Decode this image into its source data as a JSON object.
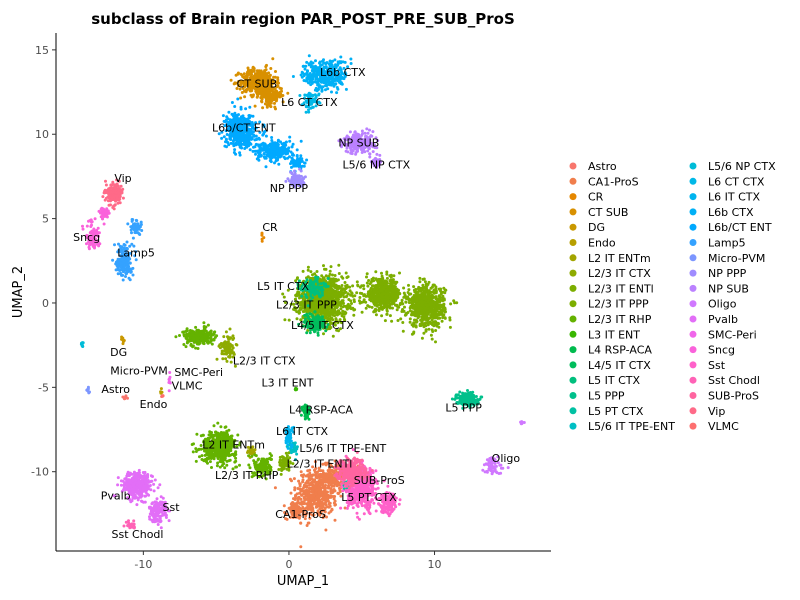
{
  "chart_data": {
    "type": "scatter",
    "title": "subclass of Brain region PAR_POST_PRE_SUB_ProS",
    "xlabel": "UMAP_1",
    "ylabel": "UMAP_2",
    "xlim": [
      -16.0,
      18.0
    ],
    "ylim": [
      -14.7,
      16.0
    ],
    "xticks": [
      -10,
      0,
      10
    ],
    "yticks": [
      -10,
      -5,
      0,
      5,
      10,
      15
    ],
    "legend_position": "right",
    "legend_columns": 2,
    "series": [
      {
        "name": "Astro",
        "color": "#F8766D",
        "clusters": [
          [
            -11.3,
            -5.6,
            0.15,
            0.12,
            8
          ]
        ]
      },
      {
        "name": "CA1-ProS",
        "color": "#F07E4C",
        "clusters": [
          [
            1.9,
            -11.3,
            1.4,
            1.5,
            500
          ],
          [
            3.4,
            -10.2,
            0.9,
            0.8,
            160
          ],
          [
            0.4,
            -12.3,
            0.6,
            0.5,
            100
          ]
        ]
      },
      {
        "name": "CR",
        "color": "#E58700",
        "clusters": [
          [
            -1.8,
            3.9,
            0.1,
            0.2,
            6
          ]
        ]
      },
      {
        "name": "CT SUB",
        "color": "#D89000",
        "clusters": [
          [
            -2.1,
            13.1,
            1.2,
            0.8,
            450
          ],
          [
            -1.2,
            12.3,
            0.7,
            0.6,
            160
          ]
        ]
      },
      {
        "name": "DG",
        "color": "#C99800",
        "clusters": [
          [
            -11.4,
            -2.2,
            0.15,
            0.2,
            10
          ]
        ]
      },
      {
        "name": "Endo",
        "color": "#B79F00",
        "clusters": [
          [
            -8.8,
            -5.2,
            0.15,
            0.15,
            6
          ]
        ]
      },
      {
        "name": "L2 IT ENTm",
        "color": "#A3A500",
        "clusters": [
          [
            -2.6,
            -8.8,
            0.3,
            0.3,
            30
          ]
        ]
      },
      {
        "name": "L2/3 IT CTX",
        "color": "#8EAB00",
        "clusters": [
          [
            -4.2,
            -2.6,
            0.5,
            0.8,
            90
          ]
        ]
      },
      {
        "name": "L2/3 IT ENTl",
        "color": "#7CAE00",
        "clusters": [
          [
            -0.3,
            -9.5,
            0.4,
            0.5,
            80
          ]
        ]
      },
      {
        "name": "L2/3 IT PPP",
        "color": "#7CAE00",
        "clusters": [
          [
            2.3,
            0.2,
            1.7,
            1.4,
            1200
          ],
          [
            6.5,
            0.5,
            1.2,
            0.9,
            500
          ],
          [
            9.4,
            -0.2,
            1.3,
            1.2,
            700
          ]
        ]
      },
      {
        "name": "L2/3 IT RHP",
        "color": "#64B200",
        "clusters": [
          [
            -4.8,
            -8.5,
            1.2,
            0.9,
            500
          ],
          [
            -6.2,
            -2.0,
            1.0,
            0.5,
            250
          ],
          [
            -1.8,
            -9.7,
            0.6,
            0.6,
            150
          ]
        ]
      },
      {
        "name": "L3 IT ENT",
        "color": "#39B600",
        "clusters": [
          [
            0.5,
            -5.1,
            0.12,
            0.12,
            10
          ]
        ]
      },
      {
        "name": "L4 RSP-ACA",
        "color": "#00BB4E",
        "clusters": [
          [
            1.2,
            -6.5,
            0.25,
            0.6,
            40
          ]
        ]
      },
      {
        "name": "L4/5 IT CTX",
        "color": "#00BD5C",
        "clusters": [
          [
            1.8,
            -1.2,
            0.8,
            0.6,
            120
          ]
        ]
      },
      {
        "name": "L5 IT CTX",
        "color": "#00BF7D",
        "clusters": [
          [
            1.6,
            0.9,
            0.8,
            0.6,
            120
          ]
        ]
      },
      {
        "name": "L5 PPP",
        "color": "#00C08B",
        "clusters": [
          [
            12.2,
            -5.7,
            0.7,
            0.35,
            250
          ]
        ]
      },
      {
        "name": "L5 PT CTX",
        "color": "#00C1A3",
        "clusters": [
          [
            4.0,
            -10.8,
            0.35,
            0.35,
            40
          ]
        ]
      },
      {
        "name": "L5/6 IT TPE-ENT",
        "color": "#00BFC4",
        "clusters": [
          [
            0.3,
            -8.6,
            0.3,
            0.4,
            40
          ]
        ]
      },
      {
        "name": "L5/6 NP CTX",
        "color": "#00BCD8",
        "clusters": [
          [
            -14.2,
            -2.5,
            0.1,
            0.2,
            10
          ]
        ]
      },
      {
        "name": "L6 CT CTX",
        "color": "#00B8E7",
        "clusters": [
          [
            1.5,
            12.0,
            0.6,
            0.5,
            60
          ]
        ]
      },
      {
        "name": "L6 IT CTX",
        "color": "#00B4EF",
        "clusters": [
          [
            0.0,
            -7.9,
            0.3,
            0.6,
            60
          ]
        ]
      },
      {
        "name": "L6b CTX",
        "color": "#00B0F6",
        "clusters": [
          [
            2.5,
            13.5,
            1.5,
            0.9,
            350
          ]
        ]
      },
      {
        "name": "L6b/CT ENT",
        "color": "#00A9FF",
        "clusters": [
          [
            -3.3,
            10.2,
            1.0,
            1.0,
            500
          ],
          [
            -1.0,
            9.0,
            1.3,
            0.6,
            250
          ],
          [
            0.6,
            8.3,
            0.5,
            0.4,
            60
          ]
        ]
      },
      {
        "name": "Lamp5",
        "color": "#35A2FF",
        "clusters": [
          [
            -11.3,
            2.5,
            0.5,
            1.0,
            180
          ],
          [
            -10.5,
            4.5,
            0.4,
            0.4,
            50
          ]
        ]
      },
      {
        "name": "Micro-PVM",
        "color": "#7C96FF",
        "clusters": [
          [
            -13.8,
            -5.2,
            0.1,
            0.2,
            8
          ]
        ]
      },
      {
        "name": "NP PPP",
        "color": "#9F8CFF",
        "clusters": [
          [
            0.5,
            7.3,
            0.5,
            0.4,
            120
          ]
        ]
      },
      {
        "name": "NP SUB",
        "color": "#BB81FF",
        "clusters": [
          [
            4.9,
            9.5,
            1.1,
            0.6,
            250
          ],
          [
            6.0,
            8.3,
            0.3,
            0.3,
            30
          ]
        ]
      },
      {
        "name": "Oligo",
        "color": "#D078FF",
        "clusters": [
          [
            14.0,
            -9.7,
            0.8,
            0.5,
            60
          ],
          [
            16.0,
            -7.1,
            0.2,
            0.1,
            6
          ]
        ]
      },
      {
        "name": "Pvalb",
        "color": "#E26EF7",
        "clusters": [
          [
            -10.4,
            -10.8,
            1.0,
            0.8,
            350
          ],
          [
            -9.0,
            -12.3,
            0.6,
            0.7,
            150
          ]
        ]
      },
      {
        "name": "SMC-Peri",
        "color": "#F066EA",
        "clusters": [
          [
            -8.2,
            -4.6,
            0.1,
            0.5,
            8
          ]
        ]
      },
      {
        "name": "Sncg",
        "color": "#FA62DB",
        "clusters": [
          [
            -13.5,
            4.0,
            0.5,
            0.8,
            90
          ],
          [
            -12.7,
            5.3,
            0.4,
            0.3,
            40
          ]
        ]
      },
      {
        "name": "Sst",
        "color": "#FF61CA",
        "clusters": [
          [
            5.0,
            -11.0,
            1.0,
            1.2,
            500
          ],
          [
            6.8,
            -11.8,
            0.6,
            0.6,
            150
          ]
        ]
      },
      {
        "name": "Sst Chodl",
        "color": "#FF62B6",
        "clusters": [
          [
            -10.9,
            -13.2,
            0.4,
            0.25,
            20
          ]
        ]
      },
      {
        "name": "SUB-ProS",
        "color": "#FF65A0",
        "clusters": [
          [
            4.3,
            -10.0,
            1.0,
            0.7,
            300
          ]
        ]
      },
      {
        "name": "Vip",
        "color": "#FF6A88",
        "clusters": [
          [
            -12.0,
            6.5,
            0.5,
            0.6,
            200
          ]
        ]
      },
      {
        "name": "VLMC",
        "color": "#FD6F6F",
        "clusters": [
          [
            -8.7,
            -5.5,
            0.1,
            0.1,
            5
          ]
        ]
      }
    ],
    "annotations": [
      {
        "text": "Vip",
        "x": -11.4,
        "y": 7.4
      },
      {
        "text": "Sncg",
        "x": -13.9,
        "y": 3.9
      },
      {
        "text": "Lamp5",
        "x": -10.5,
        "y": 3.0
      },
      {
        "text": "CT SUB",
        "x": -2.2,
        "y": 13.0
      },
      {
        "text": "L6b CTX",
        "x": 3.7,
        "y": 13.7
      },
      {
        "text": "L6 CT CTX",
        "x": 1.4,
        "y": 11.9
      },
      {
        "text": "L6b/CT ENT",
        "x": -3.1,
        "y": 10.4
      },
      {
        "text": "NP SUB",
        "x": 4.8,
        "y": 9.5
      },
      {
        "text": "L5/6 NP CTX",
        "x": 6.0,
        "y": 8.2
      },
      {
        "text": "NP PPP",
        "x": 0.0,
        "y": 6.8
      },
      {
        "text": "CR",
        "x": -1.3,
        "y": 4.5
      },
      {
        "text": "L5 IT CTX",
        "x": -0.4,
        "y": 1.0
      },
      {
        "text": "L2/3 IT PPP",
        "x": 1.2,
        "y": -0.1
      },
      {
        "text": "L4/5 IT CTX",
        "x": 2.3,
        "y": -1.3
      },
      {
        "text": "L2/3 IT CTX",
        "x": -1.7,
        "y": -3.4
      },
      {
        "text": "DG",
        "x": -11.7,
        "y": -2.9
      },
      {
        "text": "Micro-PVM",
        "x": -10.3,
        "y": -4.0
      },
      {
        "text": "SMC-Peri",
        "x": -6.2,
        "y": -4.1
      },
      {
        "text": "Astro",
        "x": -11.9,
        "y": -5.1
      },
      {
        "text": "VLMC",
        "x": -7.0,
        "y": -4.9
      },
      {
        "text": "Endo",
        "x": -9.3,
        "y": -6.0
      },
      {
        "text": "L3 IT ENT",
        "x": -0.1,
        "y": -4.7
      },
      {
        "text": "L4 RSP-ACA",
        "x": 2.2,
        "y": -6.3
      },
      {
        "text": "L5 PPP",
        "x": 12.0,
        "y": -6.2
      },
      {
        "text": "L6 IT CTX",
        "x": 0.9,
        "y": -7.6
      },
      {
        "text": "L2 IT ENTm",
        "x": -3.8,
        "y": -8.4
      },
      {
        "text": "L5/6 IT TPE-ENT",
        "x": 3.7,
        "y": -8.6
      },
      {
        "text": "L2/3 IT ENTl",
        "x": 2.1,
        "y": -9.5
      },
      {
        "text": "L2/3 IT RHP",
        "x": -2.9,
        "y": -10.2
      },
      {
        "text": "SUB-ProS",
        "x": 6.2,
        "y": -10.5
      },
      {
        "text": "Oligo",
        "x": 14.9,
        "y": -9.2
      },
      {
        "text": "L5 PT CTX",
        "x": 5.5,
        "y": -11.5
      },
      {
        "text": "CA1-ProS",
        "x": 0.8,
        "y": -12.5
      },
      {
        "text": "Pvalb",
        "x": -11.9,
        "y": -11.4
      },
      {
        "text": "Sst",
        "x": -8.1,
        "y": -12.1
      },
      {
        "text": "Sst Chodl",
        "x": -10.4,
        "y": -13.7
      }
    ]
  }
}
